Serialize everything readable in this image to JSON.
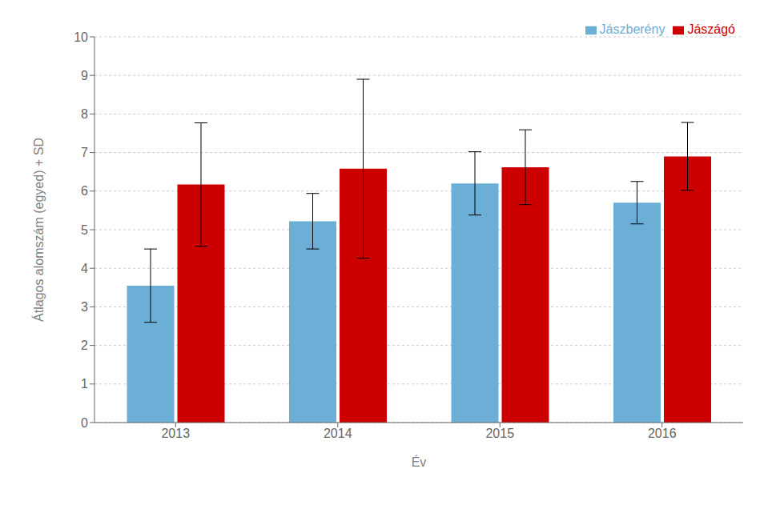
{
  "chart_data": {
    "type": "bar",
    "xlabel": "Év",
    "ylabel": "Átlagos alomszám (egyed) + SD",
    "categories": [
      "2013",
      "2014",
      "2015",
      "2016"
    ],
    "series": [
      {
        "name": "Jászberény",
        "color": "#6BAED6",
        "values": [
          3.55,
          5.22,
          6.2,
          5.7
        ],
        "errors": [
          0.95,
          0.72,
          0.82,
          0.55
        ]
      },
      {
        "name": "Jászágó",
        "color": "#CC0000",
        "values": [
          6.17,
          6.58,
          6.62,
          6.9
        ],
        "errors": [
          1.6,
          2.32,
          0.97,
          0.88
        ]
      }
    ],
    "ylim": [
      0,
      10
    ],
    "yticks": [
      0,
      1,
      2,
      3,
      4,
      5,
      6,
      7,
      8,
      9,
      10
    ],
    "grid": true,
    "legend": "upper right"
  }
}
